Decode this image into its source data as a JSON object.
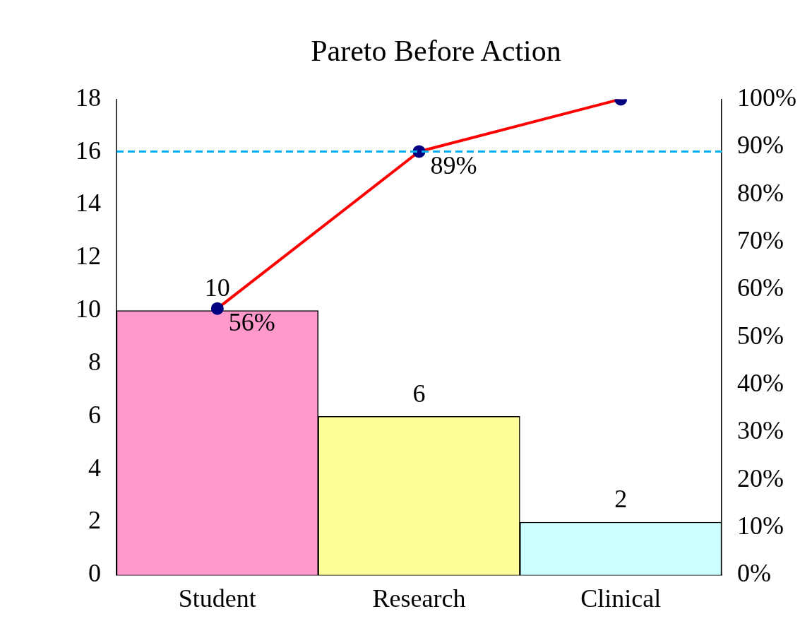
{
  "chart_data": {
    "type": "bar",
    "title": "Pareto Before Action",
    "categories": [
      "Student",
      "Research",
      "Clinical"
    ],
    "series": [
      {
        "values": [
          10,
          6,
          2
        ],
        "colors": [
          "#ff99cc",
          "#ffff99",
          "#ccffff"
        ],
        "value_labels": [
          "10",
          "6",
          "2"
        ]
      },
      {
        "type": "line",
        "axis": "y2",
        "values": [
          56,
          89,
          100
        ],
        "color": "#ff0000",
        "value_labels": [
          "56%",
          "89%",
          null
        ]
      }
    ],
    "ylim": [
      0,
      18
    ],
    "yticks": [
      0,
      2,
      4,
      6,
      8,
      10,
      12,
      14,
      16,
      18
    ],
    "y2lim": [
      0,
      100
    ],
    "y2ticks": [
      {
        "value": 0,
        "label": "0%"
      },
      {
        "value": 10,
        "label": "10%"
      },
      {
        "value": 20,
        "label": "20%"
      },
      {
        "value": 30,
        "label": "30%"
      },
      {
        "value": 40,
        "label": "40%"
      },
      {
        "value": 50,
        "label": "50%"
      },
      {
        "value": 60,
        "label": "60%"
      },
      {
        "value": 70,
        "label": "70%"
      },
      {
        "value": 80,
        "label": "80%"
      },
      {
        "value": 90,
        "label": "90%"
      },
      {
        "value": 100,
        "label": "100%"
      }
    ],
    "ref_lines": [
      {
        "axis": "y2",
        "value": 89,
        "color": "#00b0f0",
        "line_style": "dashed"
      }
    ],
    "marker": "circle",
    "line_style": "solid",
    "grid": false,
    "legend": false
  }
}
